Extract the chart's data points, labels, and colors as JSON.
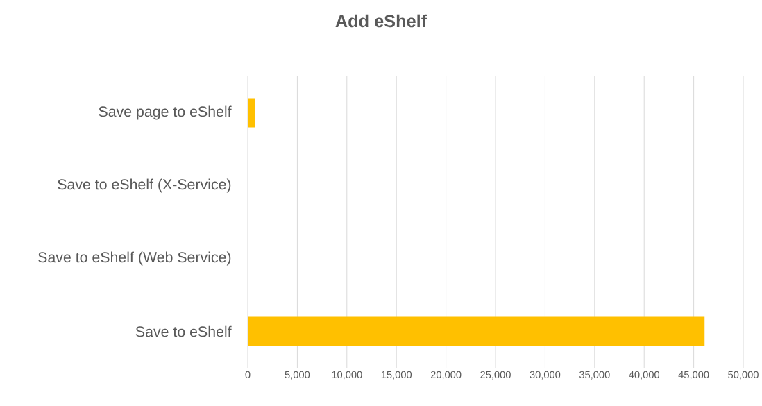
{
  "chart_data": {
    "type": "bar",
    "orientation": "horizontal",
    "title": "Add eShelf",
    "categories": [
      "Save page to eShelf",
      "Save to eShelf (X-Service)",
      "Save to eShelf (Web Service)",
      "Save to eShelf"
    ],
    "values": [
      700,
      0,
      0,
      46100
    ],
    "color": "#ffc000",
    "xlim": [
      0,
      50000
    ],
    "xticks": [
      {
        "value": 0,
        "label": "0"
      },
      {
        "value": 5000,
        "label": "5,000"
      },
      {
        "value": 10000,
        "label": "10,000"
      },
      {
        "value": 15000,
        "label": "15,000"
      },
      {
        "value": 20000,
        "label": "20,000"
      },
      {
        "value": 25000,
        "label": "25,000"
      },
      {
        "value": 30000,
        "label": "30,000"
      },
      {
        "value": 35000,
        "label": "35,000"
      },
      {
        "value": 40000,
        "label": "40,000"
      },
      {
        "value": 45000,
        "label": "45,000"
      },
      {
        "value": 50000,
        "label": "50,000"
      }
    ],
    "grid": "x"
  }
}
